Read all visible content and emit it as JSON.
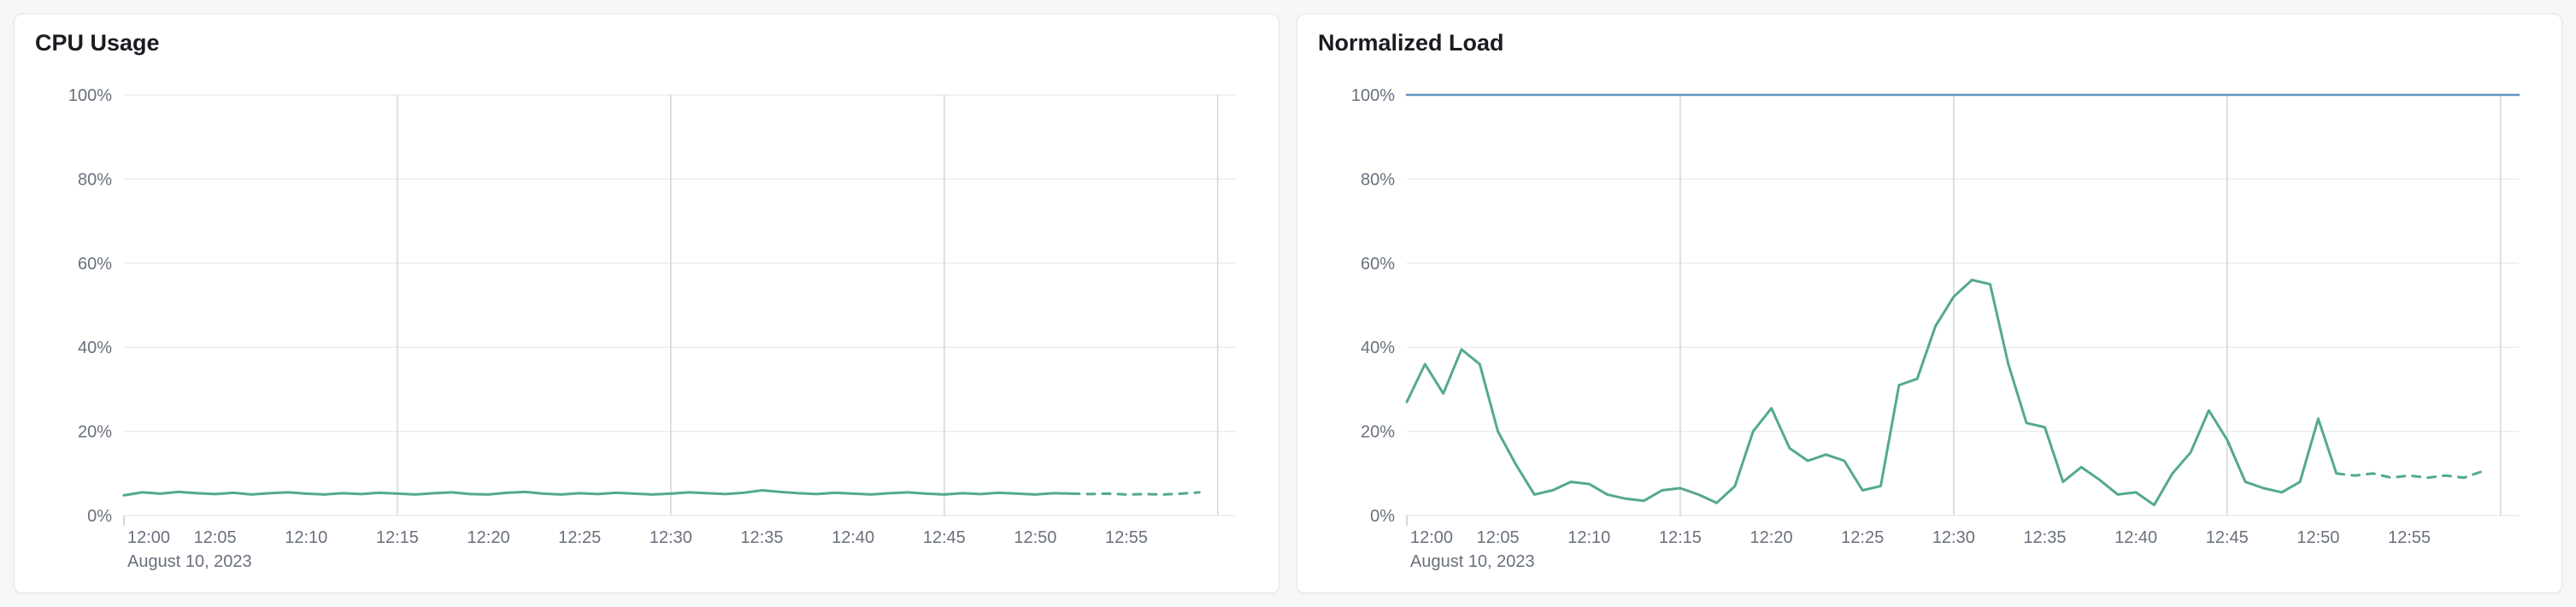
{
  "page": {
    "background": "#f6f7f9"
  },
  "colors": {
    "card_bg": "#ffffff",
    "card_border": "#e3e6ea",
    "title_text": "#1a1c21",
    "tick_text": "#69707d",
    "grid_horizontal": "#e9edef",
    "grid_vertical": "#d2d7db",
    "line_green": "#54a98c",
    "line_blue": "#6092c0"
  },
  "chart_data": [
    {
      "type": "line",
      "title": "CPU Usage",
      "legend": "none",
      "grid": "on",
      "x_axis": {
        "date_label": "August 10, 2023",
        "range_minutes": [
          0,
          61
        ],
        "tick_minutes": [
          0,
          5,
          10,
          15,
          20,
          25,
          30,
          35,
          40,
          45,
          50,
          55
        ],
        "tick_labels": [
          "12:00",
          "12:05",
          "12:10",
          "12:15",
          "12:20",
          "12:25",
          "12:30",
          "12:35",
          "12:40",
          "12:45",
          "12:50",
          "12:55"
        ],
        "major_grid_minutes": [
          15,
          30,
          45,
          60
        ]
      },
      "y_axis": {
        "range": [
          0,
          100
        ],
        "ticks": [
          0,
          20,
          40,
          60,
          80,
          100
        ],
        "tick_labels": [
          "0%",
          "20%",
          "40%",
          "60%",
          "80%",
          "100%"
        ]
      },
      "series": [
        {
          "id": "cpu-usage-solid",
          "color": "#54a98c",
          "style": "solid",
          "width": 3,
          "points": [
            [
              0,
              4.8
            ],
            [
              1,
              5.5
            ],
            [
              2,
              5.2
            ],
            [
              3,
              5.6
            ],
            [
              4,
              5.3
            ],
            [
              5,
              5.1
            ],
            [
              6,
              5.4
            ],
            [
              7,
              5.0
            ],
            [
              8,
              5.3
            ],
            [
              9,
              5.5
            ],
            [
              10,
              5.2
            ],
            [
              11,
              5.0
            ],
            [
              12,
              5.3
            ],
            [
              13,
              5.1
            ],
            [
              14,
              5.4
            ],
            [
              15,
              5.2
            ],
            [
              16,
              5.0
            ],
            [
              17,
              5.3
            ],
            [
              18,
              5.5
            ],
            [
              19,
              5.1
            ],
            [
              20,
              5.0
            ],
            [
              21,
              5.4
            ],
            [
              22,
              5.6
            ],
            [
              23,
              5.2
            ],
            [
              24,
              5.0
            ],
            [
              25,
              5.3
            ],
            [
              26,
              5.1
            ],
            [
              27,
              5.4
            ],
            [
              28,
              5.2
            ],
            [
              29,
              5.0
            ],
            [
              30,
              5.2
            ],
            [
              31,
              5.5
            ],
            [
              32,
              5.3
            ],
            [
              33,
              5.1
            ],
            [
              34,
              5.4
            ],
            [
              35,
              6.0
            ],
            [
              36,
              5.6
            ],
            [
              37,
              5.3
            ],
            [
              38,
              5.1
            ],
            [
              39,
              5.4
            ],
            [
              40,
              5.2
            ],
            [
              41,
              5.0
            ],
            [
              42,
              5.3
            ],
            [
              43,
              5.5
            ],
            [
              44,
              5.2
            ],
            [
              45,
              5.0
            ],
            [
              46,
              5.3
            ],
            [
              47,
              5.1
            ],
            [
              48,
              5.4
            ],
            [
              49,
              5.2
            ],
            [
              50,
              5.0
            ],
            [
              51,
              5.3
            ],
            [
              52,
              5.2
            ]
          ]
        },
        {
          "id": "cpu-usage-dashed-projection",
          "color": "#54a98c",
          "style": "dashed",
          "width": 3,
          "points": [
            [
              52,
              5.2
            ],
            [
              53,
              5.1
            ],
            [
              54,
              5.2
            ],
            [
              55,
              5.0
            ],
            [
              56,
              5.1
            ],
            [
              57,
              5.0
            ],
            [
              58,
              5.2
            ],
            [
              59,
              5.5
            ]
          ]
        }
      ]
    },
    {
      "type": "line",
      "title": "Normalized Load",
      "legend": "none",
      "grid": "on",
      "x_axis": {
        "date_label": "August 10, 2023",
        "range_minutes": [
          0,
          61
        ],
        "tick_minutes": [
          0,
          5,
          10,
          15,
          20,
          25,
          30,
          35,
          40,
          45,
          50,
          55
        ],
        "tick_labels": [
          "12:00",
          "12:05",
          "12:10",
          "12:15",
          "12:20",
          "12:25",
          "12:30",
          "12:35",
          "12:40",
          "12:45",
          "12:50",
          "12:55"
        ],
        "major_grid_minutes": [
          15,
          30,
          45,
          60
        ]
      },
      "y_axis": {
        "range": [
          0,
          100
        ],
        "ticks": [
          0,
          20,
          40,
          60,
          80,
          100
        ],
        "tick_labels": [
          "0%",
          "20%",
          "40%",
          "60%",
          "80%",
          "100%"
        ]
      },
      "series": [
        {
          "id": "limit-100-percent-line",
          "color": "#6092c0",
          "style": "solid",
          "width": 2.5,
          "points": [
            [
              0,
              100
            ],
            [
              61,
              100
            ]
          ]
        },
        {
          "id": "normalized-load-solid",
          "color": "#54a98c",
          "style": "solid",
          "width": 3,
          "points": [
            [
              0,
              27
            ],
            [
              1,
              36
            ],
            [
              2,
              29
            ],
            [
              3,
              39.5
            ],
            [
              4,
              36
            ],
            [
              5,
              20
            ],
            [
              6,
              12
            ],
            [
              7,
              5
            ],
            [
              8,
              6
            ],
            [
              9,
              8
            ],
            [
              10,
              7.5
            ],
            [
              11,
              5
            ],
            [
              12,
              4
            ],
            [
              13,
              3.5
            ],
            [
              14,
              6
            ],
            [
              15,
              6.5
            ],
            [
              16,
              5
            ],
            [
              17,
              3
            ],
            [
              18,
              7
            ],
            [
              19,
              20
            ],
            [
              20,
              25.5
            ],
            [
              21,
              16
            ],
            [
              22,
              13
            ],
            [
              23,
              14.5
            ],
            [
              24,
              13
            ],
            [
              25,
              6
            ],
            [
              26,
              7
            ],
            [
              27,
              31
            ],
            [
              28,
              32.5
            ],
            [
              29,
              45
            ],
            [
              30,
              52
            ],
            [
              31,
              56
            ],
            [
              32,
              55
            ],
            [
              33,
              36
            ],
            [
              34,
              22
            ],
            [
              35,
              21
            ],
            [
              36,
              8
            ],
            [
              37,
              11.5
            ],
            [
              38,
              8.5
            ],
            [
              39,
              5
            ],
            [
              40,
              5.5
            ],
            [
              41,
              2.5
            ],
            [
              42,
              10
            ],
            [
              43,
              15
            ],
            [
              44,
              25
            ],
            [
              45,
              18
            ],
            [
              46,
              8
            ],
            [
              47,
              6.5
            ],
            [
              48,
              5.5
            ],
            [
              49,
              8
            ],
            [
              50,
              23
            ],
            [
              51,
              10
            ]
          ]
        },
        {
          "id": "normalized-load-dashed-projection",
          "color": "#54a98c",
          "style": "dashed",
          "width": 3,
          "points": [
            [
              51,
              10
            ],
            [
              52,
              9.5
            ],
            [
              53,
              10
            ],
            [
              54,
              9
            ],
            [
              55,
              9.5
            ],
            [
              56,
              9
            ],
            [
              57,
              9.5
            ],
            [
              58,
              9
            ],
            [
              59,
              10.5
            ]
          ]
        }
      ]
    }
  ]
}
